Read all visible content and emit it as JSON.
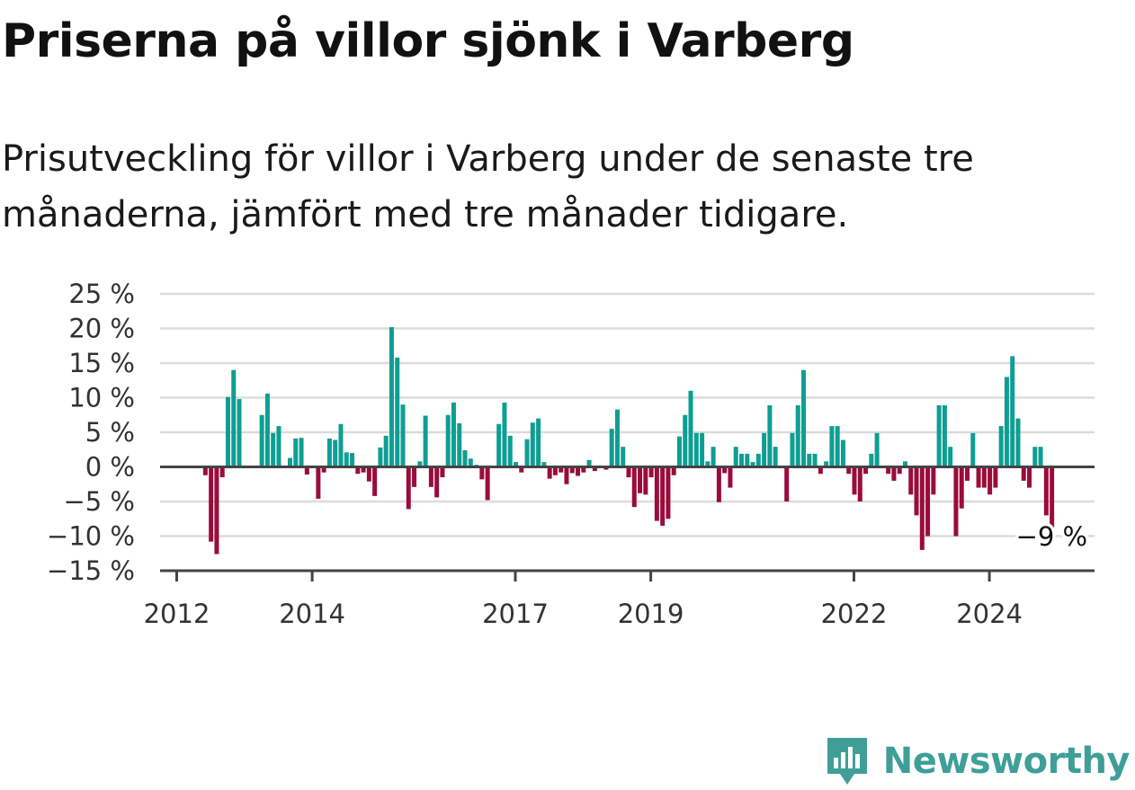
{
  "title": "Priserna på villor sjönk i Varberg",
  "subtitle": "Prisutveckling för villor i Varberg under de senaste tre månaderna, jämfört med tre månader tidigare.",
  "colors": {
    "positive": "#0e9e93",
    "negative": "#9a0c3a",
    "grid": "#dcdcdc",
    "axis": "#444444",
    "brand": "#3f9f98"
  },
  "logo": {
    "text": "Newsworthy",
    "icon": "newsworthy-logo-icon"
  },
  "chart_data": {
    "type": "bar",
    "ylim": [
      -15,
      25
    ],
    "yticks": [
      25,
      20,
      15,
      10,
      5,
      0,
      -5,
      -10,
      -15
    ],
    "ytick_labels": [
      "25 %",
      "20 %",
      "15 %",
      "10 %",
      "5 %",
      "0 %",
      "−5 %",
      "−10 %",
      "−15 %"
    ],
    "xticks": [
      2012,
      2014,
      2017,
      2019,
      2022,
      2024
    ],
    "xtick_labels": [
      "2012",
      "2014",
      "2017",
      "2019",
      "2022",
      "2024"
    ],
    "grid": true,
    "bars": [
      {
        "date": "2012-06",
        "value": -1.2
      },
      {
        "date": "2012-07",
        "value": -10.8
      },
      {
        "date": "2012-08",
        "value": -12.6
      },
      {
        "date": "2012-09",
        "value": -1.5
      },
      {
        "date": "2012-10",
        "value": 10.1
      },
      {
        "date": "2012-11",
        "value": 14.0
      },
      {
        "date": "2012-12",
        "value": 9.8
      },
      {
        "date": "2013-04",
        "value": 7.5
      },
      {
        "date": "2013-05",
        "value": 10.6
      },
      {
        "date": "2013-06",
        "value": 4.9
      },
      {
        "date": "2013-07",
        "value": 5.9
      },
      {
        "date": "2013-09",
        "value": 1.3
      },
      {
        "date": "2013-10",
        "value": 4.1
      },
      {
        "date": "2013-11",
        "value": 4.2
      },
      {
        "date": "2013-12",
        "value": -1.1
      },
      {
        "date": "2014-01",
        "value": 0.0
      },
      {
        "date": "2014-02",
        "value": -4.6
      },
      {
        "date": "2014-03",
        "value": -0.8
      },
      {
        "date": "2014-04",
        "value": 4.1
      },
      {
        "date": "2014-05",
        "value": 3.9
      },
      {
        "date": "2014-06",
        "value": 6.2
      },
      {
        "date": "2014-07",
        "value": 2.1
      },
      {
        "date": "2014-08",
        "value": 2.0
      },
      {
        "date": "2014-09",
        "value": -1.0
      },
      {
        "date": "2014-10",
        "value": -0.8
      },
      {
        "date": "2014-11",
        "value": -2.1
      },
      {
        "date": "2014-12",
        "value": -4.2
      },
      {
        "date": "2015-01",
        "value": 2.8
      },
      {
        "date": "2015-02",
        "value": 4.5
      },
      {
        "date": "2015-03",
        "value": 20.2
      },
      {
        "date": "2015-04",
        "value": 15.8
      },
      {
        "date": "2015-05",
        "value": 9.0
      },
      {
        "date": "2015-06",
        "value": -6.1
      },
      {
        "date": "2015-07",
        "value": -2.9
      },
      {
        "date": "2015-08",
        "value": 0.8
      },
      {
        "date": "2015-09",
        "value": 7.4
      },
      {
        "date": "2015-10",
        "value": -2.9
      },
      {
        "date": "2015-11",
        "value": -4.4
      },
      {
        "date": "2015-12",
        "value": -1.5
      },
      {
        "date": "2016-01",
        "value": 7.5
      },
      {
        "date": "2016-02",
        "value": 9.3
      },
      {
        "date": "2016-03",
        "value": 6.3
      },
      {
        "date": "2016-04",
        "value": 2.4
      },
      {
        "date": "2016-05",
        "value": 1.2
      },
      {
        "date": "2016-06",
        "value": 0.3
      },
      {
        "date": "2016-07",
        "value": -1.8
      },
      {
        "date": "2016-08",
        "value": -4.8
      },
      {
        "date": "2016-09",
        "value": 0.0
      },
      {
        "date": "2016-10",
        "value": 6.2
      },
      {
        "date": "2016-11",
        "value": 9.3
      },
      {
        "date": "2016-12",
        "value": 4.5
      },
      {
        "date": "2017-01",
        "value": 0.7
      },
      {
        "date": "2017-02",
        "value": -0.8
      },
      {
        "date": "2017-03",
        "value": 4.0
      },
      {
        "date": "2017-04",
        "value": 6.4
      },
      {
        "date": "2017-05",
        "value": 7.0
      },
      {
        "date": "2017-06",
        "value": 0.7
      },
      {
        "date": "2017-07",
        "value": -1.7
      },
      {
        "date": "2017-08",
        "value": -1.2
      },
      {
        "date": "2017-09",
        "value": -0.8
      },
      {
        "date": "2017-10",
        "value": -2.5
      },
      {
        "date": "2017-11",
        "value": -0.9
      },
      {
        "date": "2017-12",
        "value": -1.3
      },
      {
        "date": "2018-01",
        "value": -0.8
      },
      {
        "date": "2018-02",
        "value": 1.0
      },
      {
        "date": "2018-03",
        "value": -0.6
      },
      {
        "date": "2018-04",
        "value": 0.0
      },
      {
        "date": "2018-05",
        "value": -0.4
      },
      {
        "date": "2018-06",
        "value": 5.5
      },
      {
        "date": "2018-07",
        "value": 8.3
      },
      {
        "date": "2018-08",
        "value": 2.9
      },
      {
        "date": "2018-09",
        "value": -1.5
      },
      {
        "date": "2018-10",
        "value": -5.8
      },
      {
        "date": "2018-11",
        "value": -3.8
      },
      {
        "date": "2018-12",
        "value": -4.0
      },
      {
        "date": "2019-01",
        "value": -1.5
      },
      {
        "date": "2019-02",
        "value": -7.8
      },
      {
        "date": "2019-03",
        "value": -8.5
      },
      {
        "date": "2019-04",
        "value": -7.5
      },
      {
        "date": "2019-05",
        "value": -1.2
      },
      {
        "date": "2019-06",
        "value": 4.4
      },
      {
        "date": "2019-07",
        "value": 7.5
      },
      {
        "date": "2019-08",
        "value": 11.0
      },
      {
        "date": "2019-09",
        "value": 4.9
      },
      {
        "date": "2019-10",
        "value": 4.9
      },
      {
        "date": "2019-11",
        "value": 0.8
      },
      {
        "date": "2019-12",
        "value": 2.9
      },
      {
        "date": "2020-01",
        "value": -5.1
      },
      {
        "date": "2020-02",
        "value": -0.9
      },
      {
        "date": "2020-03",
        "value": -3.0
      },
      {
        "date": "2020-04",
        "value": 2.9
      },
      {
        "date": "2020-05",
        "value": 1.9
      },
      {
        "date": "2020-06",
        "value": 1.9
      },
      {
        "date": "2020-07",
        "value": 0.7
      },
      {
        "date": "2020-08",
        "value": 1.9
      },
      {
        "date": "2020-09",
        "value": 4.9
      },
      {
        "date": "2020-10",
        "value": 8.9
      },
      {
        "date": "2020-11",
        "value": 2.9
      },
      {
        "date": "2020-12",
        "value": 0.0
      },
      {
        "date": "2021-01",
        "value": -5.0
      },
      {
        "date": "2021-02",
        "value": 4.9
      },
      {
        "date": "2021-03",
        "value": 8.9
      },
      {
        "date": "2021-04",
        "value": 14.0
      },
      {
        "date": "2021-05",
        "value": 1.9
      },
      {
        "date": "2021-06",
        "value": 1.9
      },
      {
        "date": "2021-07",
        "value": -1.0
      },
      {
        "date": "2021-08",
        "value": 0.8
      },
      {
        "date": "2021-09",
        "value": 5.9
      },
      {
        "date": "2021-10",
        "value": 5.9
      },
      {
        "date": "2021-11",
        "value": 3.9
      },
      {
        "date": "2021-12",
        "value": -1.0
      },
      {
        "date": "2022-01",
        "value": -4.0
      },
      {
        "date": "2022-02",
        "value": -5.0
      },
      {
        "date": "2022-03",
        "value": -1.0
      },
      {
        "date": "2022-04",
        "value": 1.9
      },
      {
        "date": "2022-05",
        "value": 4.9
      },
      {
        "date": "2022-06",
        "value": 0.0
      },
      {
        "date": "2022-07",
        "value": -1.0
      },
      {
        "date": "2022-08",
        "value": -2.0
      },
      {
        "date": "2022-09",
        "value": -1.0
      },
      {
        "date": "2022-10",
        "value": 0.8
      },
      {
        "date": "2022-11",
        "value": -4.0
      },
      {
        "date": "2022-12",
        "value": -7.0
      },
      {
        "date": "2023-01",
        "value": -12.0
      },
      {
        "date": "2023-02",
        "value": -10.0
      },
      {
        "date": "2023-03",
        "value": -4.0
      },
      {
        "date": "2023-04",
        "value": 8.9
      },
      {
        "date": "2023-05",
        "value": 8.9
      },
      {
        "date": "2023-06",
        "value": 2.9
      },
      {
        "date": "2023-07",
        "value": -10.0
      },
      {
        "date": "2023-08",
        "value": -6.0
      },
      {
        "date": "2023-09",
        "value": -2.0
      },
      {
        "date": "2023-10",
        "value": 4.9
      },
      {
        "date": "2023-11",
        "value": -3.0
      },
      {
        "date": "2023-12",
        "value": -3.0
      },
      {
        "date": "2024-01",
        "value": -4.0
      },
      {
        "date": "2024-02",
        "value": -3.0
      },
      {
        "date": "2024-03",
        "value": 5.9
      },
      {
        "date": "2024-04",
        "value": 13.0
      },
      {
        "date": "2024-05",
        "value": 16.0
      },
      {
        "date": "2024-06",
        "value": 7.0
      },
      {
        "date": "2024-07",
        "value": -2.0
      },
      {
        "date": "2024-08",
        "value": -3.0
      },
      {
        "date": "2024-09",
        "value": 2.9
      },
      {
        "date": "2024-10",
        "value": 2.9
      },
      {
        "date": "2024-11",
        "value": -7.0
      },
      {
        "date": "2024-12",
        "value": -9.0
      }
    ],
    "annotation": {
      "text": "−9 %",
      "date": "2024-12",
      "value": -9.0
    }
  }
}
